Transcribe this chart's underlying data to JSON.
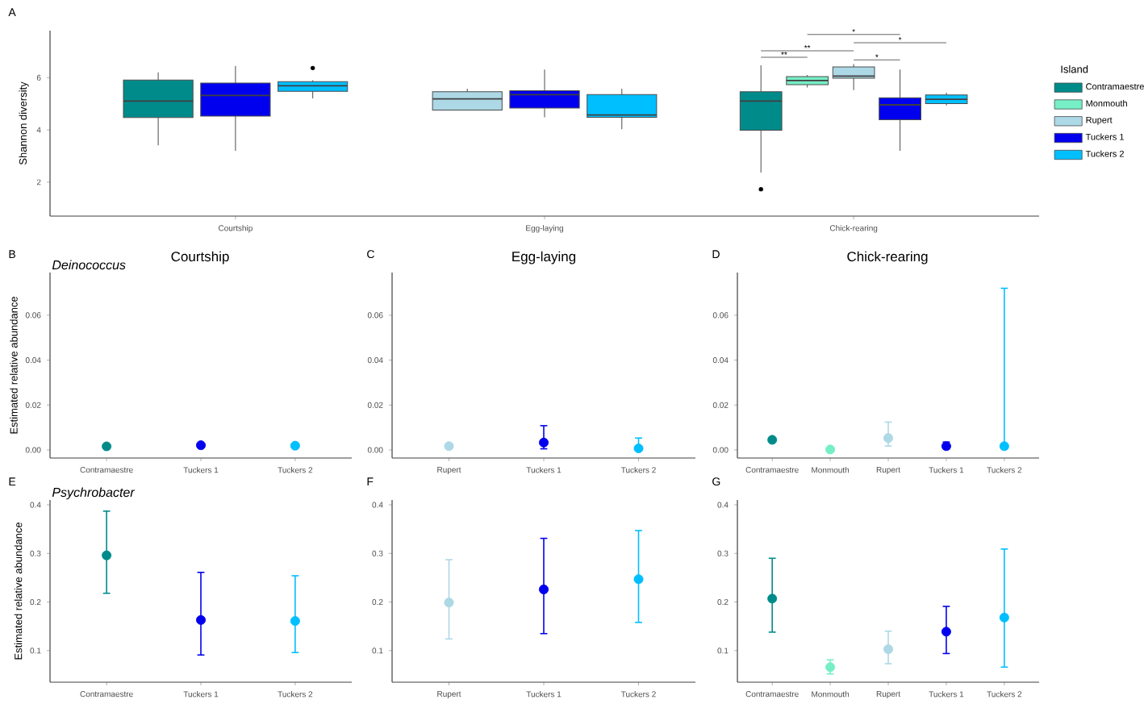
{
  "chart_data": [
    {
      "type": "box",
      "categories": [
        "Courtship",
        "Egg-laying",
        "Chick-rearing"
      ],
      "ylabel": "Shannon diversity",
      "ylim": [
        0.7,
        7.8
      ],
      "yticks": [
        2,
        4,
        6
      ],
      "legend": "right",
      "legend_title": "Island",
      "series": [
        {
          "name": "Contramaestre",
          "color": "#008b8b",
          "boxes": [
            {
              "low": 3.41,
              "q1": 4.47,
              "median": 5.1,
              "q3": 5.91,
              "high": 6.2
            },
            null,
            {
              "low": 2.37,
              "q1": 3.99,
              "median": 5.1,
              "q3": 5.46,
              "high": 6.47,
              "outliers": [
                1.73
              ]
            }
          ]
        },
        {
          "name": "Monmouth",
          "color": "#76eec6",
          "boxes": [
            null,
            null,
            {
              "low": 5.62,
              "q1": 5.73,
              "median": 5.89,
              "q3": 6.04,
              "high": 6.1
            }
          ]
        },
        {
          "name": "Rupert",
          "color": "#add8e6",
          "boxes": [
            null,
            {
              "low": 4.76,
              "q1": 4.76,
              "median": 5.19,
              "q3": 5.46,
              "high": 5.58
            },
            {
              "low": 5.52,
              "q1": 5.98,
              "median": 6.06,
              "q3": 6.41,
              "high": 6.52
            }
          ]
        },
        {
          "name": "Tuckers 1",
          "color": "#0000ee",
          "boxes": [
            {
              "low": 3.2,
              "q1": 4.53,
              "median": 5.32,
              "q3": 5.79,
              "high": 6.45
            },
            {
              "low": 4.48,
              "q1": 4.84,
              "median": 5.35,
              "q3": 5.5,
              "high": 6.31
            },
            {
              "low": 3.2,
              "q1": 4.39,
              "median": 4.96,
              "q3": 5.23,
              "high": 6.31
            }
          ]
        },
        {
          "name": "Tuckers 2",
          "color": "#00bfff",
          "boxes": [
            {
              "low": 5.21,
              "q1": 5.48,
              "median": 5.69,
              "q3": 5.85,
              "high": 5.9,
              "outliers": [
                6.37
              ]
            },
            {
              "low": 4.03,
              "q1": 4.48,
              "median": 4.57,
              "q3": 5.35,
              "high": 5.58
            },
            {
              "low": 4.94,
              "q1": 5.01,
              "median": 5.17,
              "q3": 5.34,
              "high": 5.42
            }
          ]
        }
      ],
      "annotations": [
        "A",
        "*",
        "*",
        "**",
        "**",
        "*"
      ]
    },
    {
      "type": "scatter",
      "title": "Courtship",
      "subtitle": "Deinococcus",
      "ylabel": "Estimated relative abundance",
      "annotations": [
        "B"
      ],
      "marker": "circle",
      "categories": [
        "Contramaestre",
        "Tuckers 1",
        "Tuckers 2"
      ],
      "values": [
        0.0016,
        0.0021,
        0.0019
      ],
      "colors": [
        "#008b8b",
        "#0000ee",
        "#00bfff"
      ],
      "ylim": [
        -0.0036,
        0.079
      ],
      "yticks": [
        {
          "value": 0,
          "label": "0.00"
        },
        {
          "value": 0.02,
          "label": "0.02"
        },
        {
          "value": 0.04,
          "label": "0.04"
        },
        {
          "value": 0.06,
          "label": "0.06"
        }
      ]
    },
    {
      "type": "scatter",
      "title": "Egg-laying",
      "annotations": [
        "C"
      ],
      "marker": "circle",
      "categories": [
        "Rupert",
        "Tuckers 1",
        "Tuckers 2"
      ],
      "values": [
        0.0017,
        0.0033,
        0.0007
      ],
      "errors": [
        null,
        [
          0.0005,
          0.0108
        ],
        [
          0.0,
          0.0053
        ]
      ],
      "colors": [
        "#add8e6",
        "#0000ee",
        "#00bfff"
      ],
      "ylim": [
        -0.0036,
        0.079
      ],
      "yticks": [
        {
          "value": 0,
          "label": "0.00"
        },
        {
          "value": 0.02,
          "label": "0.02"
        },
        {
          "value": 0.04,
          "label": "0.04"
        },
        {
          "value": 0.06,
          "label": "0.06"
        }
      ]
    },
    {
      "type": "scatter",
      "title": "Chick-rearing",
      "annotations": [
        "D"
      ],
      "marker": "circle",
      "categories": [
        "Contramaestre",
        "Monmouth",
        "Rupert",
        "Tuckers 1",
        "Tuckers 2"
      ],
      "values": [
        0.0045,
        0.0002,
        0.0053,
        0.0017,
        0.0017
      ],
      "errors": [
        null,
        null,
        [
          0.0017,
          0.0124
        ],
        [
          0.0005,
          0.0035
        ],
        [
          0.0005,
          0.072
        ]
      ],
      "colors": [
        "#008b8b",
        "#76eec6",
        "#add8e6",
        "#0000ee",
        "#00bfff"
      ],
      "ylim": [
        -0.0036,
        0.079
      ],
      "yticks": [
        {
          "value": 0,
          "label": "0.00"
        },
        {
          "value": 0.02,
          "label": "0.02"
        },
        {
          "value": 0.04,
          "label": "0.04"
        },
        {
          "value": 0.06,
          "label": "0.06"
        }
      ]
    },
    {
      "type": "scatter",
      "subtitle": "Psychrobacter",
      "ylabel": "Estimated relative abundance",
      "annotations": [
        "E"
      ],
      "marker": "circle",
      "categories": [
        "Contramaestre",
        "Tuckers 1",
        "Tuckers 2"
      ],
      "values": [
        0.296,
        0.163,
        0.161
      ],
      "errors": [
        [
          0.218,
          0.387
        ],
        [
          0.091,
          0.261
        ],
        [
          0.096,
          0.254
        ]
      ],
      "colors": [
        "#008b8b",
        "#0000ee",
        "#00bfff"
      ],
      "ylim": [
        0.035,
        0.41
      ],
      "yticks": [
        0.1,
        0.2,
        0.3,
        0.4
      ]
    },
    {
      "type": "scatter",
      "annotations": [
        "F"
      ],
      "marker": "circle",
      "categories": [
        "Rupert",
        "Tuckers 1",
        "Tuckers 2"
      ],
      "values": [
        0.199,
        0.226,
        0.247
      ],
      "errors": [
        [
          0.124,
          0.287
        ],
        [
          0.135,
          0.331
        ],
        [
          0.158,
          0.347
        ]
      ],
      "colors": [
        "#add8e6",
        "#0000ee",
        "#00bfff"
      ],
      "ylim": [
        0.035,
        0.41
      ],
      "yticks": [
        0.1,
        0.2,
        0.3,
        0.4
      ]
    },
    {
      "type": "scatter",
      "annotations": [
        "G"
      ],
      "marker": "circle",
      "categories": [
        "Contramaestre",
        "Monmouth",
        "Rupert",
        "Tuckers 1",
        "Tuckers 2"
      ],
      "values": [
        0.207,
        0.066,
        0.103,
        0.139,
        0.168
      ],
      "errors": [
        [
          0.138,
          0.29
        ],
        [
          0.052,
          0.081
        ],
        [
          0.073,
          0.14
        ],
        [
          0.094,
          0.191
        ],
        [
          0.066,
          0.309
        ]
      ],
      "colors": [
        "#008b8b",
        "#76eec6",
        "#add8e6",
        "#0000ee",
        "#00bfff"
      ],
      "ylim": [
        0.035,
        0.41
      ],
      "yticks": [
        0.1,
        0.2,
        0.3,
        0.4
      ]
    }
  ]
}
